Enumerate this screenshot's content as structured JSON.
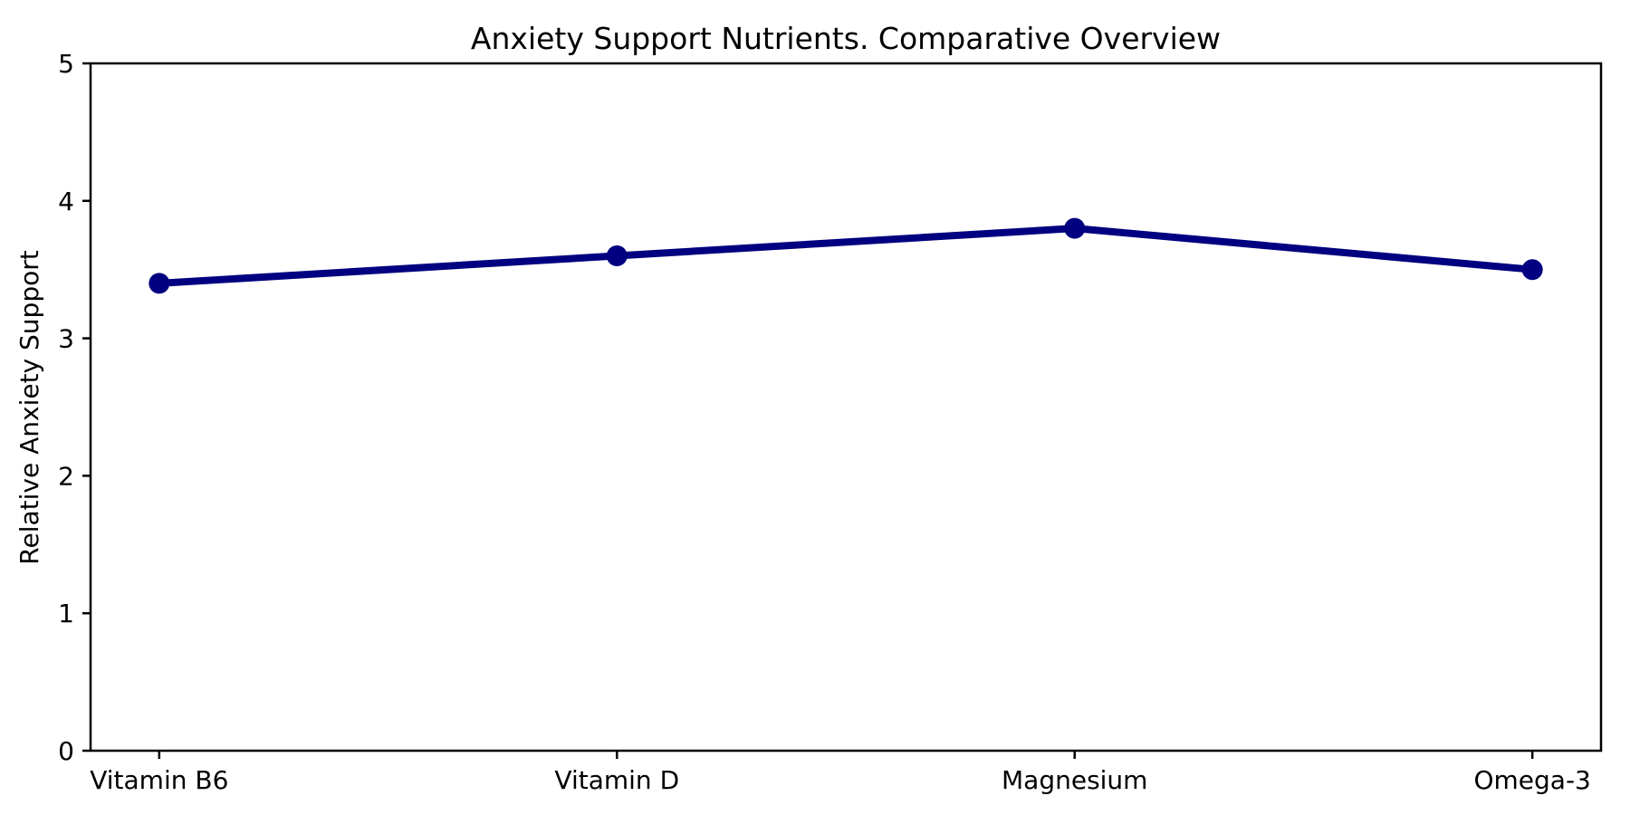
{
  "figure": {
    "background": "#ffffff"
  },
  "chart_data": {
    "type": "line",
    "title": "Anxiety Support Nutrients. Comparative Overview",
    "categories": [
      "Vitamin B6",
      "Vitamin D",
      "Magnesium",
      "Omega-3"
    ],
    "values": [
      3.4,
      3.6,
      3.8,
      3.5
    ],
    "xlabel": "",
    "ylabel": "Relative Anxiety Support",
    "ylim": [
      0,
      5
    ],
    "yticks": [
      0,
      1,
      2,
      3,
      4,
      5
    ],
    "grid": false,
    "legend": "none",
    "line_color": "#000080",
    "marker": "circle",
    "axis_color": "#000000",
    "text_color": "#000000"
  }
}
